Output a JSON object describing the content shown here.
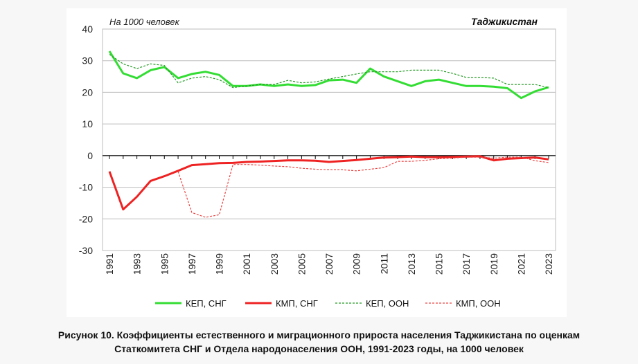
{
  "caption": {
    "line1": "Рисунок 10. Коэффициенты естественного и миграционного прироста населения Таджикистана по оценкам",
    "line2": "Статкомитета СНГ и Отдела народонаселения ООН, 1991-2023 годы, на 1000 человек"
  },
  "chart_data": {
    "type": "line",
    "title": "Таджикистан",
    "subtitle": "На 1000 человек",
    "xlabel": "",
    "ylabel": "",
    "ylim": [
      -30,
      40
    ],
    "yticks": [
      40,
      30,
      20,
      10,
      0,
      -10,
      -20,
      -30
    ],
    "x": [
      1991,
      1992,
      1993,
      1994,
      1995,
      1996,
      1997,
      1998,
      1999,
      2000,
      2001,
      2002,
      2003,
      2004,
      2005,
      2006,
      2007,
      2008,
      2009,
      2010,
      2011,
      2012,
      2013,
      2014,
      2015,
      2016,
      2017,
      2018,
      2019,
      2020,
      2021,
      2022,
      2023
    ],
    "xtick_labels": [
      "1991",
      "1993",
      "1995",
      "1997",
      "1999",
      "2001",
      "2003",
      "2005",
      "2007",
      "2009",
      "2011",
      "2013",
      "2015",
      "2017",
      "2019",
      "2021",
      "2023"
    ],
    "grid": true,
    "legend_position": "bottom",
    "series": [
      {
        "name": "КЕП, СНГ",
        "color": "#33dd33",
        "style": "solid",
        "values": [
          33,
          26,
          24.5,
          27,
          28,
          24.5,
          25.8,
          26.5,
          25.5,
          22,
          22,
          22.5,
          22,
          22.5,
          22,
          22.3,
          23.8,
          24,
          23,
          27.5,
          25,
          23.5,
          22,
          23.5,
          24,
          23,
          22,
          22,
          21.8,
          21.3,
          18.2,
          20.3,
          21.6
        ]
      },
      {
        "name": "КМП, СНГ",
        "color": "#ee2222",
        "style": "solid",
        "values": [
          -5,
          -17,
          -13,
          -8,
          -6.5,
          -4.8,
          -3,
          -2.7,
          -2.4,
          -2.3,
          -2,
          -1.9,
          -1.7,
          -1.5,
          -1.5,
          -1.6,
          -2,
          -1.7,
          -1.4,
          -1,
          -0.6,
          -0.5,
          -0.3,
          -0.5,
          -0.5,
          -0.4,
          -0.3,
          -0.2,
          -1.5,
          -1,
          -0.8,
          -0.6,
          -1.2
        ]
      },
      {
        "name": "КЕП, ООН",
        "color": "#229922",
        "style": "dashed",
        "values": [
          32,
          29,
          27.5,
          29,
          28.5,
          23,
          24.5,
          25,
          24,
          21.5,
          22,
          22.5,
          22.5,
          23.8,
          23,
          23.3,
          24.2,
          25,
          25.8,
          26.5,
          26.5,
          26.5,
          27,
          27,
          27,
          26,
          24.7,
          24.7,
          24.5,
          22.5,
          22.5,
          22.5,
          21.5
        ]
      },
      {
        "name": "КМП, ООН",
        "color": "#ee4444",
        "style": "dashed",
        "values": [
          null,
          null,
          null,
          null,
          null,
          -5,
          -18,
          -19.5,
          -18.7,
          -2.8,
          -2.8,
          -3,
          -3.3,
          -3.5,
          -4,
          -4.3,
          -4.5,
          -4.5,
          -4.8,
          -4.3,
          -3.8,
          -1.8,
          -1.8,
          -1.5,
          -1,
          -0.8,
          -0.5,
          -0.5,
          -0.8,
          -0.5,
          -0.5,
          -1.6,
          -2.2
        ]
      }
    ]
  }
}
